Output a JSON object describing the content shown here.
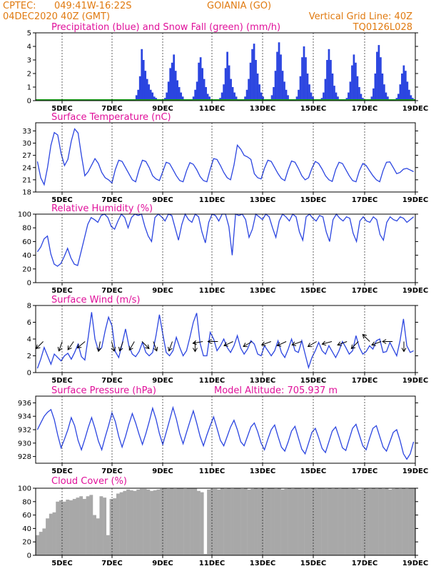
{
  "header": {
    "source": "CPTEC:",
    "coords": "049:41W-16:22S",
    "location": "GOIANIA (GO)",
    "date": "04DEC2020 40Z (GMT)",
    "grid_note": "Vertical Grid Line: 40Z",
    "code": "TQ0126L028"
  },
  "x_ticks": [
    "5DEC",
    "7DEC",
    "9DEC",
    "11DEC",
    "13DEC",
    "15DEC",
    "17DEC",
    "19DEC"
  ],
  "colors": {
    "line": "#2b45e0",
    "snow": "#1aa01a",
    "cloud": "#a8a8a8",
    "title": "#e0109a",
    "header": "#e07a10"
  },
  "chart_data": [
    {
      "id": "precip",
      "type": "bar",
      "title": "Precipitation (blue) and Snow Fall (green) (mm/h)",
      "ylim": [
        0,
        5
      ],
      "yticks": [
        0,
        1,
        2,
        3,
        4,
        5
      ],
      "x_range": [
        "4DEC",
        "19DEC"
      ],
      "series": [
        {
          "name": "Precipitation",
          "values": [
            0,
            0,
            0,
            0,
            0,
            0,
            0,
            0,
            0,
            0,
            0,
            0,
            0,
            0,
            0,
            0,
            0,
            0,
            0,
            0,
            0,
            0,
            0,
            0,
            0,
            0,
            0,
            0,
            0,
            0,
            0,
            0,
            0,
            0,
            0,
            0,
            0,
            0,
            0,
            0,
            0,
            0,
            0,
            0,
            0,
            0,
            0,
            0,
            0,
            0,
            0,
            0,
            0,
            0,
            0,
            0.1,
            0.4,
            0.8,
            1.8,
            3.8,
            3.0,
            2.2,
            1.6,
            1.2,
            0.8,
            0.6,
            0.3,
            0.2,
            0.1,
            0,
            0,
            0,
            0.2,
            0.6,
            1.4,
            2.4,
            2.8,
            3.4,
            2.2,
            1.5,
            1.0,
            0.6,
            0.3,
            0.1,
            0,
            0,
            0,
            0.1,
            0.3,
            0.8,
            1.4,
            2.8,
            3.2,
            2.4,
            1.6,
            1.0,
            0.5,
            0.3,
            0.1,
            0,
            0,
            0,
            0,
            0.2,
            0.6,
            1.2,
            2.4,
            3.6,
            2.6,
            1.6,
            1.0,
            0.6,
            0.3,
            0.1,
            0,
            0,
            0,
            0.3,
            0.8,
            1.6,
            2.8,
            3.8,
            4.2,
            3.0,
            2.0,
            1.2,
            0.6,
            0.3,
            0.1,
            0,
            0,
            0,
            0.4,
            1.0,
            2.2,
            3.6,
            4.3,
            3.4,
            2.2,
            1.4,
            0.8,
            0.4,
            0.1,
            0,
            0,
            0,
            0.3,
            0.8,
            1.8,
            3.2,
            4.0,
            3.2,
            2.0,
            1.2,
            0.6,
            0.3,
            0.1,
            0,
            0,
            0,
            0.2,
            0.6,
            1.6,
            3.0,
            3.8,
            3.0,
            2.0,
            1.1,
            0.6,
            0.3,
            0.1,
            0,
            0,
            0,
            0.2,
            0.6,
            1.4,
            2.6,
            3.4,
            2.8,
            1.8,
            1.0,
            0.5,
            0.2,
            0,
            0,
            0,
            0,
            0.3,
            0.9,
            2.0,
            3.6,
            4.1,
            3.2,
            2.0,
            1.2,
            0.6,
            0.3,
            0.1,
            0,
            0,
            0,
            0.2,
            0.5,
            1.2,
            2.0,
            2.6,
            2.2,
            1.4,
            0.8,
            0.4,
            0.2,
            0
          ]
        },
        {
          "name": "Snow Fall",
          "values": [
            0
          ]
        }
      ]
    },
    {
      "id": "temp",
      "type": "line",
      "title": "Surface Temperature (nC)",
      "ylim": [
        18,
        35
      ],
      "yticks": [
        18,
        21,
        24,
        27,
        30,
        33
      ],
      "series": [
        {
          "values": [
            25.5,
            21.5,
            19.8,
            24.0,
            29.5,
            32.6,
            32.0,
            27.5,
            24.5,
            26.0,
            30.5,
            33.5,
            32.5,
            27.0,
            22.0,
            23.0,
            24.6,
            26.2,
            25.0,
            22.8,
            21.5,
            21.0,
            20.2,
            23.5,
            25.8,
            25.5,
            24.0,
            22.5,
            21.0,
            20.5,
            23.5,
            25.8,
            25.5,
            24.0,
            22.0,
            21.2,
            20.8,
            23.0,
            25.3,
            25.0,
            23.5,
            22.0,
            20.8,
            20.5,
            23.2,
            25.2,
            24.8,
            23.5,
            21.8,
            20.8,
            20.5,
            23.6,
            26.2,
            26.0,
            24.5,
            22.8,
            21.5,
            21.0,
            24.6,
            29.5,
            28.5,
            27.0,
            26.6,
            26.0,
            22.5,
            21.5,
            21.2,
            23.8,
            25.8,
            25.5,
            24.0,
            22.5,
            21.3,
            20.8,
            23.5,
            25.6,
            25.3,
            23.8,
            22.0,
            21.0,
            21.5,
            23.8,
            25.5,
            25.0,
            23.6,
            22.0,
            21.0,
            20.6,
            23.5,
            25.3,
            25.0,
            23.5,
            22.0,
            20.8,
            20.5,
            23.2,
            25.0,
            24.5,
            23.2,
            22.0,
            21.0,
            20.5,
            23.3,
            25.3,
            25.4,
            24.0,
            22.5,
            22.8,
            23.6,
            23.8,
            23.4,
            23.0
          ]
        }
      ]
    },
    {
      "id": "rh",
      "type": "line",
      "title": "Relative Humidity (%)",
      "ylim": [
        0,
        100
      ],
      "yticks": [
        0,
        20,
        40,
        60,
        80,
        100
      ],
      "series": [
        {
          "values": [
            45,
            52,
            64,
            68,
            42,
            27,
            24,
            28,
            38,
            50,
            36,
            27,
            25,
            45,
            65,
            85,
            95,
            92,
            88,
            98,
            100,
            95,
            82,
            78,
            90,
            100,
            95,
            80,
            95,
            100,
            98,
            100,
            82,
            68,
            60,
            95,
            100,
            96,
            90,
            100,
            98,
            80,
            62,
            85,
            100,
            92,
            88,
            100,
            96,
            74,
            58,
            88,
            100,
            98,
            90,
            100,
            100,
            82,
            40,
            100,
            98,
            100,
            92,
            66,
            78,
            100,
            96,
            92,
            100,
            96,
            80,
            66,
            90,
            100,
            96,
            90,
            100,
            96,
            74,
            62,
            96,
            100,
            94,
            90,
            98,
            96,
            74,
            60,
            92,
            100,
            94,
            90,
            96,
            94,
            72,
            60,
            90,
            96,
            90,
            88,
            96,
            92,
            70,
            62,
            88,
            96,
            92,
            90,
            96,
            94,
            88,
            92,
            96
          ]
        }
      ]
    },
    {
      "id": "wind",
      "type": "line",
      "title": "Surface Wind (m/s)",
      "ylim": [
        0,
        8
      ],
      "yticks": [
        0,
        2,
        4,
        6,
        8
      ],
      "series": [
        {
          "values": [
            0.5,
            1.6,
            3.0,
            2.0,
            1.0,
            2.2,
            1.8,
            1.4,
            2.0,
            2.3,
            1.6,
            2.4,
            3.4,
            1.9,
            1.5,
            4.2,
            7.2,
            4.0,
            2.6,
            3.0,
            5.0,
            6.6,
            5.6,
            2.5,
            1.8,
            3.4,
            5.2,
            3.2,
            2.2,
            1.9,
            2.5,
            3.6,
            2.4,
            2.0,
            2.4,
            4.4,
            6.9,
            4.6,
            2.4,
            2.0,
            2.6,
            4.2,
            3.0,
            2.0,
            2.6,
            4.2,
            6.0,
            7.1,
            3.5,
            2.0,
            2.0,
            4.8,
            4.0,
            2.6,
            3.2,
            4.0,
            3.0,
            2.4,
            3.2,
            4.4,
            2.9,
            2.2,
            2.8,
            3.8,
            3.4,
            2.2,
            2.0,
            3.2,
            2.6,
            2.0,
            2.6,
            3.8,
            2.4,
            1.8,
            2.8,
            4.0,
            2.6,
            2.4,
            3.8,
            2.2,
            0.6,
            1.8,
            2.6,
            3.6,
            2.6,
            2.2,
            3.2,
            2.5,
            1.8,
            2.6,
            3.7,
            3.0,
            2.2,
            2.6,
            4.4,
            3.0,
            2.2,
            2.5,
            3.2,
            2.8,
            3.8,
            4.0,
            2.4,
            2.5,
            3.6,
            2.8,
            2.0,
            3.8,
            6.4,
            3.2,
            2.4,
            2.6
          ]
        }
      ]
    },
    {
      "id": "pres",
      "type": "line",
      "title": "Surface Pressure (hPa)",
      "annotation": "Model Altitude: 705.937 m",
      "ylim": [
        927,
        937
      ],
      "yticks": [
        928,
        930,
        932,
        934,
        936
      ],
      "series": [
        {
          "values": [
            932.0,
            933.0,
            934.0,
            934.6,
            935.0,
            933.5,
            931.2,
            929.3,
            930.6,
            932.0,
            933.8,
            932.6,
            930.4,
            929.0,
            930.6,
            932.3,
            933.8,
            932.2,
            930.3,
            929.0,
            930.9,
            932.6,
            934.5,
            933.2,
            931.0,
            929.4,
            931.0,
            932.8,
            934.4,
            933.0,
            931.3,
            929.8,
            931.4,
            933.2,
            935.2,
            933.6,
            931.4,
            929.8,
            931.6,
            933.4,
            935.3,
            933.6,
            931.4,
            929.9,
            931.6,
            933.2,
            934.8,
            933.0,
            931.0,
            929.6,
            931.2,
            932.6,
            933.9,
            932.2,
            930.4,
            929.6,
            931.0,
            932.4,
            933.4,
            932.0,
            930.2,
            929.6,
            931.0,
            932.4,
            933.0,
            931.7,
            930.0,
            929.0,
            930.6,
            932.0,
            932.7,
            931.0,
            929.4,
            928.8,
            930.2,
            931.8,
            932.5,
            930.8,
            929.1,
            928.4,
            930.0,
            931.6,
            932.2,
            930.8,
            929.2,
            928.6,
            930.2,
            931.8,
            932.4,
            930.9,
            929.3,
            928.9,
            930.6,
            932.2,
            932.8,
            931.2,
            929.6,
            929.0,
            930.7,
            932.2,
            932.6,
            931.0,
            929.4,
            928.8,
            930.2,
            931.6,
            932.0,
            930.4,
            928.4,
            927.6,
            928.4,
            930.2
          ]
        }
      ]
    },
    {
      "id": "cloud",
      "type": "bar",
      "title": "Cloud Cover (%)",
      "ylim": [
        0,
        100
      ],
      "yticks": [
        0,
        20,
        40,
        60,
        80,
        100
      ],
      "series": [
        {
          "values": [
            30,
            35,
            40,
            55,
            62,
            64,
            80,
            82,
            80,
            83,
            82,
            84,
            86,
            88,
            84,
            88,
            90,
            60,
            55,
            88,
            86,
            30,
            84,
            85,
            92,
            94,
            96,
            98,
            97,
            96,
            98,
            99,
            99,
            98,
            96,
            97,
            98,
            99,
            100,
            99,
            100,
            99,
            100,
            100,
            99,
            100,
            100,
            100,
            96,
            94,
            2,
            98,
            99,
            99,
            98,
            100,
            99,
            100,
            99,
            100,
            100,
            99,
            100,
            98,
            99,
            100,
            99,
            100,
            99,
            100,
            100,
            99,
            100,
            98,
            99,
            100,
            99,
            100,
            100,
            99,
            100,
            99,
            100,
            99,
            100,
            100,
            99,
            100,
            99,
            100,
            99,
            100,
            100,
            99,
            100,
            99,
            98,
            99,
            100,
            99,
            100,
            99,
            100,
            99,
            100,
            98,
            99,
            100,
            99,
            100,
            99,
            100,
            100
          ]
        }
      ]
    }
  ],
  "wind_arrows": [
    {
      "x": 0.02,
      "deg": 225
    },
    {
      "x": 0.07,
      "deg": 200
    },
    {
      "x": 0.1,
      "deg": 215
    },
    {
      "x": 0.13,
      "deg": 230
    },
    {
      "x": 0.17,
      "deg": 190
    },
    {
      "x": 0.2,
      "deg": 165
    },
    {
      "x": 0.23,
      "deg": 200
    },
    {
      "x": 0.26,
      "deg": 210
    },
    {
      "x": 0.28,
      "deg": 135
    },
    {
      "x": 0.31,
      "deg": 160
    },
    {
      "x": 0.36,
      "deg": 200
    },
    {
      "x": 0.42,
      "deg": 180
    },
    {
      "x": 0.44,
      "deg": 260
    },
    {
      "x": 0.48,
      "deg": 270
    },
    {
      "x": 0.52,
      "deg": 245
    },
    {
      "x": 0.57,
      "deg": 240
    },
    {
      "x": 0.62,
      "deg": 250
    },
    {
      "x": 0.66,
      "deg": 245
    },
    {
      "x": 0.7,
      "deg": 250
    },
    {
      "x": 0.74,
      "deg": 240
    },
    {
      "x": 0.78,
      "deg": 255
    },
    {
      "x": 0.82,
      "deg": 250
    },
    {
      "x": 0.85,
      "deg": 225
    },
    {
      "x": 0.88,
      "deg": 315
    },
    {
      "x": 0.91,
      "deg": 250
    },
    {
      "x": 0.94,
      "deg": 270
    },
    {
      "x": 0.97,
      "deg": 180
    }
  ]
}
